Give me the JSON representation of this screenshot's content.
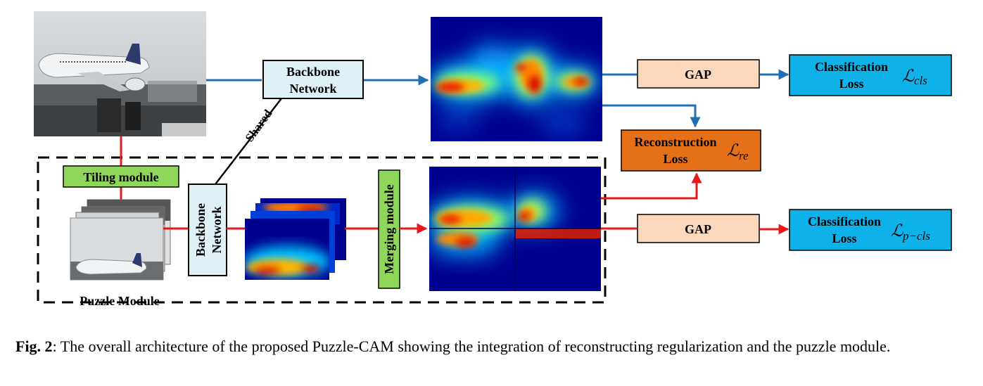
{
  "colors": {
    "blue_arrow": "#1f6fb5",
    "red_arrow": "#e8191c",
    "backbone_fill": "#dff0f7",
    "gap_fill": "#fbd7bb",
    "classification_fill": "#0fb2e8",
    "reconstruction_fill": "#e57018",
    "module_fill": "#8ed75b",
    "cam_background": "#00008f"
  },
  "labels": {
    "backbone_top_line1": "Backbone",
    "backbone_top_line2": "Network",
    "backbone_bottom_line1": "Backbone",
    "backbone_bottom_line2": "Network",
    "shared": "Shared",
    "tiling": "Tiling module",
    "merging": "Merging module",
    "puzzle": "Puzzle Module",
    "gap_top": "GAP",
    "gap_bottom": "GAP",
    "cls_top_line1": "Classification",
    "cls_top_line2": "Loss",
    "cls_top_symbol": "ℒ",
    "cls_top_sub": "cls",
    "recon_line1": "Reconstruction",
    "recon_line2": "Loss",
    "recon_symbol": "ℒ",
    "recon_sub": "re",
    "cls_bottom_line1": "Classification",
    "cls_bottom_line2": "Loss",
    "cls_bottom_symbol": "ℒ",
    "cls_bottom_sub": "p−cls"
  },
  "caption": {
    "label": "Fig. 2",
    "text": ": The overall architecture of the proposed Puzzle-CAM showing the integration of reconstructing regularization and the puzzle module."
  }
}
